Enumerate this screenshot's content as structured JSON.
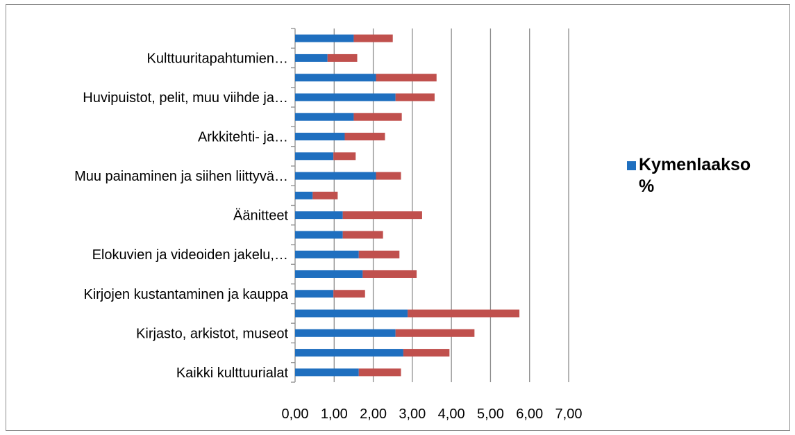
{
  "chart_data": {
    "type": "bar",
    "orientation": "horizontal",
    "stacked": true,
    "category_labels_shown": [
      "",
      "Kulttuuritapahtumien…",
      "",
      "Huvipuistot, pelit, muu viihde ja…",
      "",
      "Arkkitehti- ja…",
      "",
      "Muu painaminen ja siihen liittyvä…",
      "",
      "Äänitteet",
      "",
      "Elokuvien ja videoiden jakelu,…",
      "",
      "Kirjojen kustantaminen ja kauppa",
      "",
      "Kirjasto, arkistot, museot",
      "",
      "Kaikki kulttuurialat"
    ],
    "series": [
      {
        "name": "Kymenlaakso %",
        "color": "#1f6fbf",
        "values": [
          1.5,
          0.83,
          2.07,
          2.57,
          1.5,
          1.27,
          0.98,
          2.07,
          0.45,
          1.22,
          1.22,
          1.63,
          1.73,
          0.98,
          2.88,
          2.57,
          2.77,
          1.63
        ]
      },
      {
        "name": "",
        "color": "#c0504d",
        "values": [
          1.0,
          0.76,
          1.55,
          1.0,
          1.23,
          1.03,
          0.57,
          0.64,
          0.64,
          2.03,
          1.03,
          1.04,
          1.38,
          0.81,
          2.86,
          2.02,
          1.18,
          1.08
        ]
      }
    ],
    "xlim": [
      0,
      7
    ],
    "x_ticks": [
      "0,00",
      "1,00",
      "2,00",
      "3,00",
      "4,00",
      "5,00",
      "6,00",
      "7,00"
    ],
    "grid": "vertical",
    "legend_position": "right",
    "title": "",
    "xlabel": "",
    "ylabel": ""
  }
}
